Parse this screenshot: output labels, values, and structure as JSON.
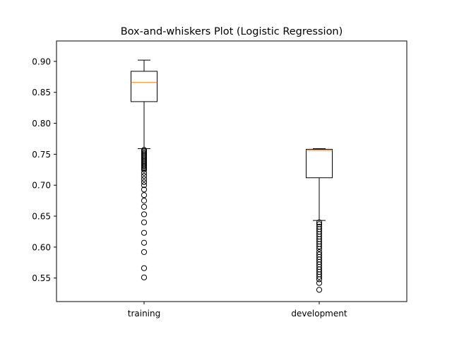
{
  "chart_data": {
    "type": "box",
    "title": "Box-and-whiskers Plot (Logistic Regression)",
    "xlabel": "",
    "ylabel": "",
    "ylim": [
      0.512,
      0.933
    ],
    "yticks": [
      0.55,
      0.6,
      0.65,
      0.7,
      0.75,
      0.8,
      0.85,
      0.9
    ],
    "ytick_labels": [
      "0.55",
      "0.60",
      "0.65",
      "0.70",
      "0.75",
      "0.80",
      "0.85",
      "0.90"
    ],
    "grid": false,
    "categories": [
      "training",
      "development"
    ],
    "boxes": [
      {
        "label": "training",
        "whisker_low": 0.759,
        "q1": 0.835,
        "median": 0.866,
        "q3": 0.884,
        "whisker_high": 0.902,
        "outliers": [
          0.757,
          0.755,
          0.753,
          0.751,
          0.749,
          0.747,
          0.745,
          0.743,
          0.741,
          0.739,
          0.737,
          0.735,
          0.733,
          0.731,
          0.729,
          0.727,
          0.725,
          0.72,
          0.715,
          0.71,
          0.705,
          0.7,
          0.693,
          0.684,
          0.675,
          0.665,
          0.653,
          0.64,
          0.623,
          0.607,
          0.592,
          0.566,
          0.551
        ]
      },
      {
        "label": "development",
        "whisker_low": 0.643,
        "q1": 0.712,
        "median": 0.756,
        "q3": 0.758,
        "whisker_high": 0.759,
        "outliers": [
          0.64,
          0.637,
          0.633,
          0.629,
          0.625,
          0.621,
          0.617,
          0.613,
          0.609,
          0.605,
          0.601,
          0.597,
          0.592,
          0.588,
          0.584,
          0.58,
          0.576,
          0.572,
          0.568,
          0.564,
          0.56,
          0.556,
          0.552,
          0.548,
          0.542,
          0.531
        ]
      }
    ]
  },
  "colors": {
    "median": "#ff7f0e",
    "box": "#000000",
    "axes": "#000000",
    "background": "#ffffff"
  }
}
